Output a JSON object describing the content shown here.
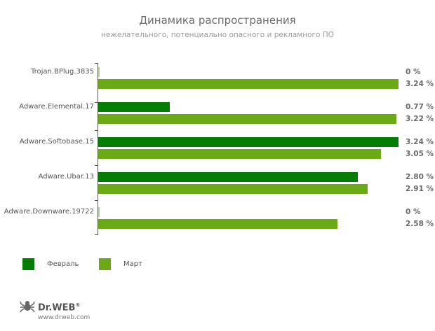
{
  "header": {
    "title": "Динамика распространения",
    "subtitle": "нежелательного, потенциально опасного и рекламного ПО"
  },
  "legend": [
    {
      "label": "Февраль",
      "color": "#037d03"
    },
    {
      "label": "Март",
      "color": "#6aaa16"
    }
  ],
  "rows": [
    {
      "name": "Trojan.BPlug.3835",
      "feb": "0 %",
      "mar": "3.24 %"
    },
    {
      "name": "Adware.Elemental.17",
      "feb": "0.77 %",
      "mar": "3.22 %"
    },
    {
      "name": "Adware.Softobase.15",
      "feb": "3.24 %",
      "mar": "3.05 %"
    },
    {
      "name": "Adware.Ubar.13",
      "feb": "2.80 %",
      "mar": "2.91 %"
    },
    {
      "name": "Adware.Downware.19722",
      "feb": "0 %",
      "mar": "2.58 %"
    }
  ],
  "footer": {
    "brand": "Dr.WEB",
    "registered": "®",
    "url": "www.drweb.com"
  },
  "chart_data": {
    "type": "bar",
    "orientation": "horizontal",
    "title": "Динамика распространения",
    "subtitle": "нежелательного, потенциально опасного и рекламного ПО",
    "categories": [
      "Trojan.BPlug.3835",
      "Adware.Elemental.17",
      "Adware.Softobase.15",
      "Adware.Ubar.13",
      "Adware.Downware.19722"
    ],
    "series": [
      {
        "name": "Февраль",
        "color": "#037d03",
        "values": [
          0,
          0.77,
          3.24,
          2.8,
          0
        ]
      },
      {
        "name": "Март",
        "color": "#6aaa16",
        "values": [
          3.24,
          3.22,
          3.05,
          2.91,
          2.58
        ]
      }
    ],
    "unit": "%",
    "xlabel": "",
    "ylabel": "",
    "xlim": [
      0,
      3.24
    ],
    "grid": false,
    "legend_position": "bottom-left",
    "data_labels": true
  }
}
